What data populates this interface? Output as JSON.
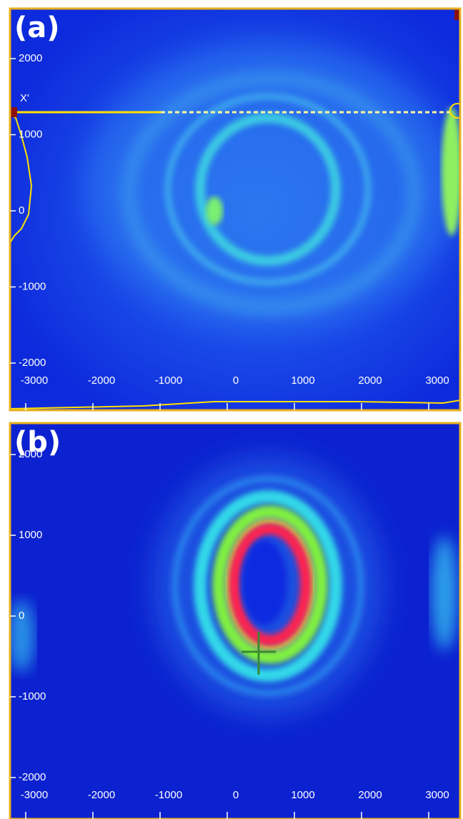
{
  "panels": [
    {
      "label": "(a)",
      "marker": "X'",
      "yticks": [
        2000,
        1000,
        0,
        -1000,
        -2000
      ],
      "xticks": [
        -3000,
        -2000,
        -1000,
        0,
        1000,
        2000,
        3000
      ]
    },
    {
      "label": "(b)",
      "yticks": [
        2000,
        1000,
        0,
        -1000,
        -2000
      ],
      "xticks": [
        -3000,
        -2000,
        -1000,
        0,
        1000,
        2000,
        3000
      ]
    }
  ]
}
